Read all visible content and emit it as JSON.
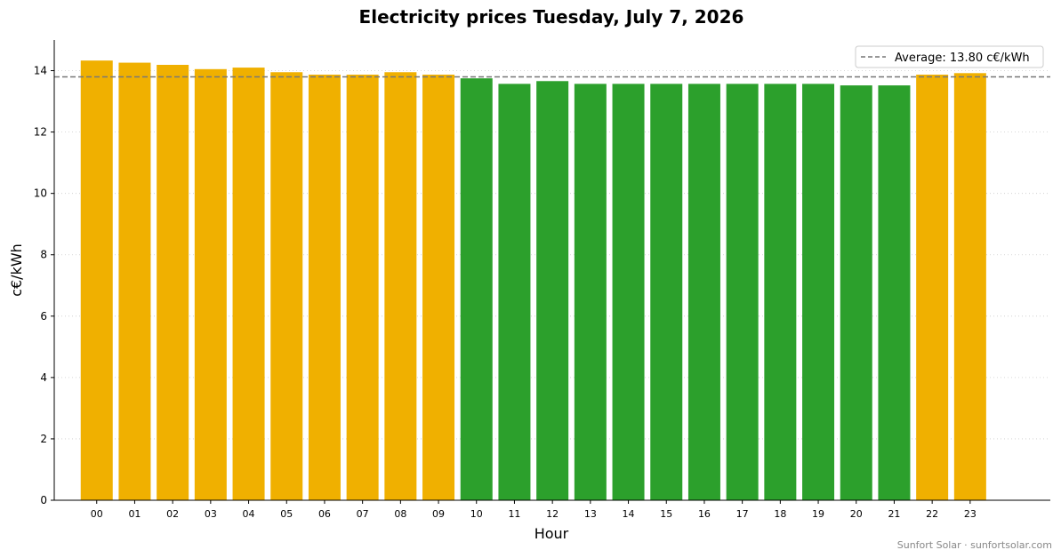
{
  "chart_data": {
    "type": "bar",
    "title": "Electricity prices Tuesday, July 7, 2026",
    "xlabel": "Hour",
    "ylabel": "c€/kWh",
    "ylim": [
      0,
      15
    ],
    "yticks": [
      "0",
      "2",
      "4",
      "6",
      "8",
      "10",
      "12",
      "14"
    ],
    "grid": "horizontal dotted",
    "categories": [
      "00",
      "01",
      "02",
      "03",
      "04",
      "05",
      "06",
      "07",
      "08",
      "09",
      "10",
      "11",
      "12",
      "13",
      "14",
      "15",
      "16",
      "17",
      "18",
      "19",
      "20",
      "21",
      "22",
      "23"
    ],
    "values": [
      14.33,
      14.26,
      14.19,
      14.05,
      14.1,
      13.95,
      13.87,
      13.87,
      13.95,
      13.87,
      13.75,
      13.57,
      13.66,
      13.57,
      13.57,
      13.57,
      13.57,
      13.57,
      13.57,
      13.57,
      13.52,
      13.52,
      13.87,
      13.92
    ],
    "bar_colors": [
      "orange",
      "orange",
      "orange",
      "orange",
      "orange",
      "orange",
      "orange",
      "orange",
      "orange",
      "orange",
      "green",
      "green",
      "green",
      "green",
      "green",
      "green",
      "green",
      "green",
      "green",
      "green",
      "green",
      "green",
      "orange",
      "orange"
    ],
    "average": 13.8,
    "legend": {
      "position": "top-right",
      "label": "Average: 13.80 c€/kWh"
    }
  },
  "colors": {
    "orange": "#F0B000",
    "green": "#2CA02C",
    "average_line": "#777777"
  },
  "footer": "Sunfort Solar · sunfortsolar.com"
}
